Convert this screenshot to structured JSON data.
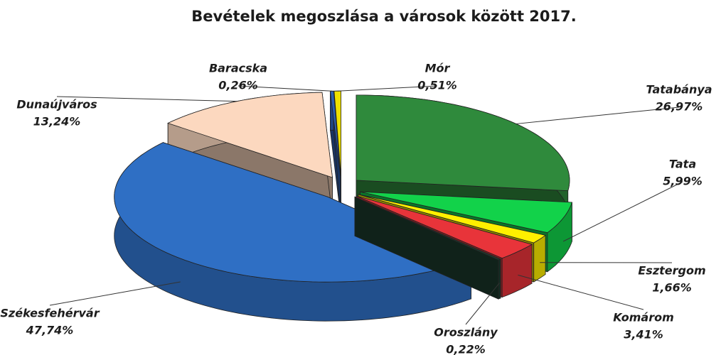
{
  "chart_data": {
    "type": "pie3d",
    "title": "Bevételek megoszlása a városok között 2017.",
    "categories": [
      "Tatabánya",
      "Tata",
      "Esztergom",
      "Komárom",
      "Oroszlány",
      "Székesfehérvár",
      "Dunaújváros",
      "Baracska",
      "Mór"
    ],
    "values": [
      26.97,
      5.99,
      1.66,
      3.41,
      0.22,
      47.74,
      13.24,
      0.26,
      0.51
    ],
    "value_labels": [
      "26,97%",
      "5,99%",
      "1,66%",
      "3,41%",
      "0,22%",
      "47,74%",
      "13,24%",
      "0,26%",
      "0,51%"
    ],
    "colors": [
      "#2f8a3c",
      "#12d24a",
      "#fff000",
      "#e8343a",
      "#1d3d30",
      "#2f6fc4",
      "#fcd8bf",
      "#2d5fb2",
      "#efe000"
    ]
  }
}
